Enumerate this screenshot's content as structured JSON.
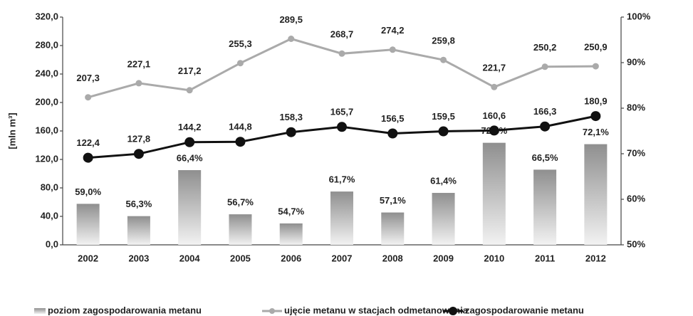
{
  "chart_data": {
    "type": "combo",
    "y_label": "[mln m³]",
    "categories": [
      "2002",
      "2003",
      "2004",
      "2005",
      "2006",
      "2007",
      "2008",
      "2009",
      "2010",
      "2011",
      "2012"
    ],
    "ylim": [
      0,
      320
    ],
    "yticks": [
      {
        "value": 0,
        "label": "0,0"
      },
      {
        "value": 40,
        "label": "40,0"
      },
      {
        "value": 80,
        "label": "80,0"
      },
      {
        "value": 120,
        "label": "120,0"
      },
      {
        "value": 160,
        "label": "160,0"
      },
      {
        "value": 200,
        "label": "200,0"
      },
      {
        "value": 240,
        "label": "240,0"
      },
      {
        "value": 280,
        "label": "280,0"
      },
      {
        "value": 320,
        "label": "320,0"
      }
    ],
    "y2lim": [
      50,
      100
    ],
    "y2ticks": [
      {
        "value": 50,
        "label": "50%"
      },
      {
        "value": 60,
        "label": "60%"
      },
      {
        "value": 70,
        "label": "70%"
      },
      {
        "value": 80,
        "label": "80%"
      },
      {
        "value": 90,
        "label": "90%"
      },
      {
        "value": 100,
        "label": "100%"
      }
    ],
    "series": [
      {
        "name": "poziom zagospodarowania metanu",
        "type": "bar",
        "axis": "y2",
        "color": "#aaaaaa",
        "values": [
          59.0,
          56.3,
          66.4,
          56.7,
          54.7,
          61.7,
          57.1,
          61.4,
          72.4,
          66.5,
          72.1
        ],
        "value_labels": [
          "59,0%",
          "56,3%",
          "66,4%",
          "56,7%",
          "54,7%",
          "61,7%",
          "57,1%",
          "61,4%",
          "72,4%",
          "66,5%",
          "72,1%"
        ]
      },
      {
        "name": "ujęcie metanu w stacjach odmetanowania",
        "type": "line",
        "color": "#aaaaaa",
        "values": [
          207.3,
          227.1,
          217.2,
          255.3,
          289.5,
          268.7,
          274.2,
          259.8,
          221.7,
          250.2,
          250.9
        ],
        "value_labels": [
          "207,3",
          "227,1",
          "217,2",
          "255,3",
          "289,5",
          "268,7",
          "274,2",
          "259,8",
          "221,7",
          "250,2",
          "250,9"
        ]
      },
      {
        "name": "zagospodarowanie metanu",
        "type": "line",
        "color": "#111111",
        "values": [
          122.4,
          127.8,
          144.2,
          144.8,
          158.3,
          165.7,
          156.5,
          159.5,
          160.6,
          166.3,
          180.9
        ],
        "value_labels": [
          "122,4",
          "127,8",
          "144,2",
          "144,8",
          "158,3",
          "165,7",
          "156,5",
          "159,5",
          "160,6",
          "166,3",
          "180,9"
        ]
      }
    ]
  }
}
